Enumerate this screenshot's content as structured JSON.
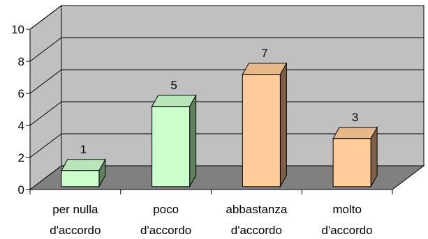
{
  "chart_data": {
    "type": "bar",
    "three_d": true,
    "categories": [
      [
        "per nulla",
        "d'accordo"
      ],
      [
        "poco",
        "d'accordo"
      ],
      [
        "abbastanza",
        "d'accordo"
      ],
      [
        "molto",
        "d'accordo"
      ]
    ],
    "values": [
      1,
      5,
      7,
      3
    ],
    "data_labels": [
      "1",
      "5",
      "7",
      "3"
    ],
    "ylim": [
      0,
      10
    ],
    "yticks": [
      0,
      2,
      4,
      6,
      8,
      10
    ],
    "grid": true,
    "legend": "none",
    "colors": {
      "wall": "#c0c0c0",
      "floor": "#808080",
      "gridline": "#000000",
      "bar_green_front": "#ccffcc",
      "bar_green_top": "#b8e6b8",
      "bar_green_side": "#5f7f5f",
      "bar_orange_front": "#ffcc99",
      "bar_orange_top": "#e6b889",
      "bar_orange_side": "#7f5f47"
    },
    "bar_color_keys": [
      "green",
      "green",
      "orange",
      "orange"
    ]
  }
}
